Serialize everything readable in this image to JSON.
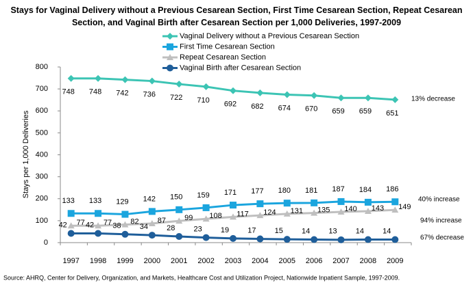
{
  "chart_data": {
    "type": "line",
    "title": "Stays for Vaginal Delivery without a Previous Cesarean Section, First Time Cesarean Section, Repeat Cesarean Section, and Vaginal Birth after Cesarean Section per 1,000 Deliveries, 1997-2009",
    "y_label": "Stays per 1,000 Deliveries",
    "source": "Source: AHRQ, Center for Delivery, Organization, and Markets, Healthcare Cost and Utilization Project, Nationwide Inpatient Sample, 1997-2009.",
    "categories": [
      "1997",
      "1998",
      "1999",
      "2000",
      "2001",
      "2002",
      "2003",
      "2004",
      "2005",
      "2006",
      "2007",
      "2008",
      "2009"
    ],
    "ylim": [
      0,
      800
    ],
    "yticks": [
      0,
      100,
      200,
      300,
      400,
      500,
      600,
      700,
      800
    ],
    "series": [
      {
        "name": "Vaginal Delivery without  a Previous Cesarean Section",
        "color": "#3CC4B4",
        "marker": "diamond",
        "values": [
          748,
          748,
          742,
          736,
          722,
          710,
          692,
          682,
          674,
          670,
          659,
          659,
          651
        ]
      },
      {
        "name": "First Time Cesarean Section",
        "color": "#1BA5DE",
        "marker": "square",
        "values": [
          133,
          133,
          129,
          142,
          150,
          159,
          171,
          177,
          180,
          181,
          187,
          184,
          186
        ]
      },
      {
        "name": "Repeat Cesarean Section",
        "color": "#BFBFBF",
        "marker": "triangle",
        "values": [
          77,
          77,
          82,
          87,
          99,
          108,
          117,
          124,
          131,
          135,
          140,
          143,
          149
        ]
      },
      {
        "name": "Vaginal Birth after Cesarean Section",
        "color": "#1F5E9A",
        "marker": "circle",
        "values": [
          42,
          42,
          38,
          34,
          28,
          23,
          19,
          17,
          15,
          14,
          13,
          14,
          14
        ]
      }
    ],
    "annotations": [
      "13% decrease",
      "40% increase",
      "94% increase",
      "67% decrease"
    ]
  }
}
